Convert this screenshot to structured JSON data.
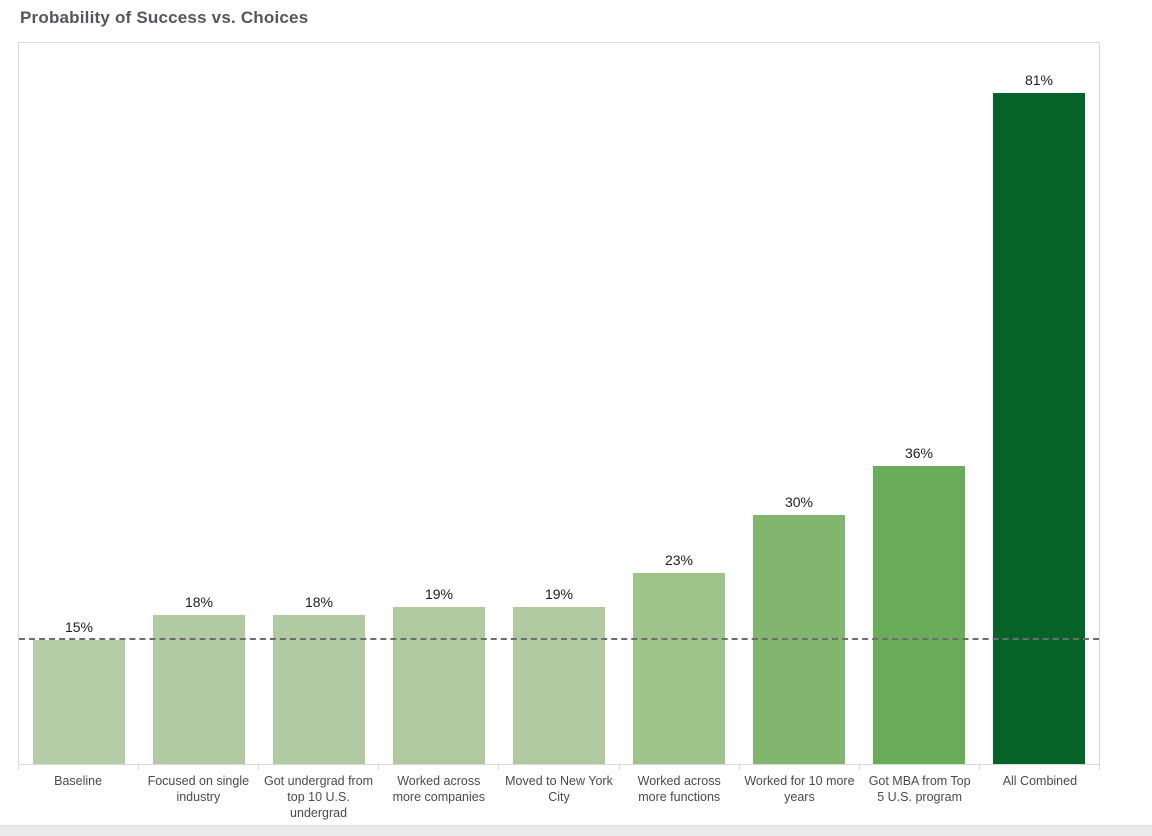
{
  "chart_data": {
    "type": "bar",
    "title": "Probability of Success vs. Choices",
    "categories": [
      "Baseline",
      "Focused on single industry",
      "Got undergrad from top 10 U.S. undergrad",
      "Worked across more companies",
      "Moved to New York City",
      "Worked across more functions",
      "Worked for 10 more years",
      "Got MBA from Top 5 U.S. program",
      "All Combined"
    ],
    "values": [
      15,
      18,
      18,
      19,
      19,
      23,
      30,
      36,
      81
    ],
    "value_labels": [
      "15%",
      "18%",
      "18%",
      "19%",
      "19%",
      "23%",
      "30%",
      "36%",
      "81%"
    ],
    "bar_colors": [
      "#b6cca6",
      "#b2caa1",
      "#b2caa1",
      "#b0c99f",
      "#b0c99f",
      "#9ec48c",
      "#82b66f",
      "#69ac59",
      "#056328"
    ],
    "xlabel": "",
    "ylabel": "",
    "ylim": [
      0,
      87
    ],
    "grid": false,
    "legend": "none",
    "reference_line": {
      "value": 15,
      "style": "dashed",
      "color": "#6e6e6e"
    },
    "colors": {
      "title_text": "#55565e",
      "value_label_text": "#222222",
      "axis_label_text": "#4b4b4b",
      "plot_border": "#d9d9d9"
    }
  }
}
